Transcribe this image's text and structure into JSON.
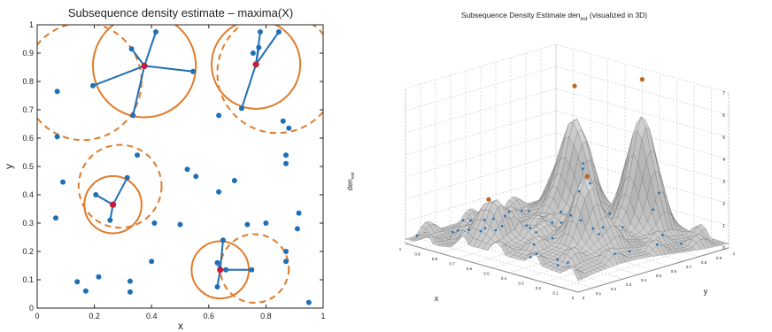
{
  "chart_data": [
    {
      "type": "scatter",
      "title": "Subsequence density estimate – maxima(X)",
      "xlabel": "x",
      "ylabel": "y",
      "xlim": [
        0,
        1
      ],
      "ylim": [
        0,
        1
      ],
      "xticks": [
        "0",
        "0.2",
        "0.4",
        "0.6",
        "0.8",
        "1"
      ],
      "yticks": [
        "0",
        "0.1",
        "0.2",
        "0.3",
        "0.4",
        "0.5",
        "0.6",
        "0.7",
        "0.8",
        "0.9",
        "1"
      ],
      "colors": {
        "points": "#1f6fb5",
        "circles": "#e07b2a",
        "maxima": "#c0203a",
        "lines": "#1f6fb5"
      },
      "points": [
        [
          0.07,
          0.765
        ],
        [
          0.07,
          0.605
        ],
        [
          0.09,
          0.445
        ],
        [
          0.065,
          0.318
        ],
        [
          0.14,
          0.093
        ],
        [
          0.17,
          0.06
        ],
        [
          0.215,
          0.11
        ],
        [
          0.195,
          0.785
        ],
        [
          0.33,
          0.915
        ],
        [
          0.415,
          0.975
        ],
        [
          0.545,
          0.835
        ],
        [
          0.335,
          0.68
        ],
        [
          0.715,
          0.705
        ],
        [
          0.755,
          0.9
        ],
        [
          0.775,
          0.92
        ],
        [
          0.78,
          0.975
        ],
        [
          0.845,
          0.975
        ],
        [
          0.86,
          0.66
        ],
        [
          0.88,
          0.635
        ],
        [
          0.635,
          0.68
        ],
        [
          0.525,
          0.49
        ],
        [
          0.555,
          0.465
        ],
        [
          0.635,
          0.41
        ],
        [
          0.69,
          0.45
        ],
        [
          0.87,
          0.54
        ],
        [
          0.87,
          0.51
        ],
        [
          0.915,
          0.335
        ],
        [
          0.91,
          0.28
        ],
        [
          0.87,
          0.2
        ],
        [
          0.87,
          0.165
        ],
        [
          0.95,
          0.02
        ],
        [
          0.8,
          0.3
        ],
        [
          0.735,
          0.295
        ],
        [
          0.41,
          0.3
        ],
        [
          0.5,
          0.295
        ],
        [
          0.4,
          0.165
        ],
        [
          0.325,
          0.095
        ],
        [
          0.325,
          0.057
        ],
        [
          0.35,
          0.54
        ],
        [
          0.205,
          0.4
        ],
        [
          0.315,
          0.46
        ],
        [
          0.255,
          0.31
        ],
        [
          0.63,
          0.16
        ],
        [
          0.65,
          0.24
        ],
        [
          0.66,
          0.135
        ],
        [
          0.75,
          0.135
        ],
        [
          0.63,
          0.075
        ]
      ],
      "maxima": [
        [
          0.375,
          0.855
        ],
        [
          0.765,
          0.86
        ],
        [
          0.265,
          0.365
        ],
        [
          0.64,
          0.135
        ]
      ],
      "connections": [
        [
          [
            0.375,
            0.855
          ],
          [
            0.195,
            0.785
          ]
        ],
        [
          [
            0.375,
            0.855
          ],
          [
            0.33,
            0.915
          ]
        ],
        [
          [
            0.375,
            0.855
          ],
          [
            0.415,
            0.975
          ]
        ],
        [
          [
            0.375,
            0.855
          ],
          [
            0.545,
            0.835
          ]
        ],
        [
          [
            0.375,
            0.855
          ],
          [
            0.335,
            0.68
          ]
        ],
        [
          [
            0.765,
            0.86
          ],
          [
            0.715,
            0.705
          ]
        ],
        [
          [
            0.765,
            0.86
          ],
          [
            0.775,
            0.92
          ]
        ],
        [
          [
            0.765,
            0.86
          ],
          [
            0.78,
            0.975
          ]
        ],
        [
          [
            0.765,
            0.86
          ],
          [
            0.845,
            0.975
          ]
        ],
        [
          [
            0.265,
            0.365
          ],
          [
            0.205,
            0.4
          ]
        ],
        [
          [
            0.265,
            0.365
          ],
          [
            0.315,
            0.46
          ]
        ],
        [
          [
            0.265,
            0.365
          ],
          [
            0.255,
            0.31
          ]
        ],
        [
          [
            0.64,
            0.135
          ],
          [
            0.65,
            0.24
          ]
        ],
        [
          [
            0.64,
            0.135
          ],
          [
            0.75,
            0.135
          ]
        ],
        [
          [
            0.64,
            0.135
          ],
          [
            0.63,
            0.075
          ]
        ],
        [
          [
            0.64,
            0.135
          ],
          [
            0.63,
            0.16
          ]
        ]
      ],
      "solid_circles": [
        {
          "center": [
            0.375,
            0.855
          ],
          "radius": 0.18
        },
        {
          "center": [
            0.765,
            0.86
          ],
          "radius": 0.155
        },
        {
          "center": [
            0.265,
            0.365
          ],
          "radius": 0.1
        },
        {
          "center": [
            0.64,
            0.135
          ],
          "radius": 0.1
        }
      ],
      "dashed_circles": [
        {
          "center": [
            0.16,
            0.8
          ],
          "radius": 0.205
        },
        {
          "center": [
            0.84,
            0.83
          ],
          "radius": 0.21
        },
        {
          "center": [
            0.29,
            0.43
          ],
          "radius": 0.145
        },
        {
          "center": [
            0.76,
            0.14
          ],
          "radius": 0.12
        }
      ]
    },
    {
      "type": "surface",
      "title": "Subsequence Density Estimate den",
      "title_sub": "est",
      "title_suffix": " (visualized in 3D)",
      "xlabel": "x",
      "ylabel": "y",
      "zlabel": "den",
      "zlabel_sub": "est",
      "zticks": [
        "0",
        "1",
        "2",
        "3",
        "4",
        "5",
        "6",
        "7"
      ],
      "x_ticks": [
        "1",
        "0.9",
        "0.8",
        "0.7",
        "0.6",
        "0.5",
        "0.4",
        "0.3",
        "0.2",
        "0.1",
        "0"
      ],
      "y_ticks": [
        "0",
        "0.1",
        "0.2",
        "0.3",
        "0.4",
        "0.5",
        "0.6",
        "0.7",
        "0.8",
        "0.9",
        "1"
      ],
      "zlim": [
        0,
        7
      ],
      "peaks": [
        [
          0.37,
          0.85,
          7.1
        ],
        [
          0.77,
          0.86,
          5.9
        ],
        [
          0.27,
          0.37,
          3.9
        ],
        [
          0.64,
          0.14,
          2.5
        ]
      ]
    }
  ]
}
